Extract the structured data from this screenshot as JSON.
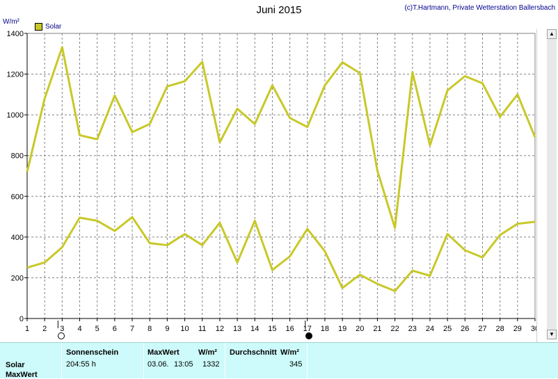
{
  "header": {
    "title": "Juni 2015",
    "copyright": "(c)T.Hartmann, Private Wetterstation Ballersbach",
    "unit": "W/m²",
    "legend_label": "Solar"
  },
  "colors": {
    "series": "#c8c828",
    "grid": "#808080",
    "background": "#ffffff",
    "stats_background": "#cdfafa"
  },
  "chart_data": {
    "type": "line",
    "title": "Juni 2015",
    "ylabel": "W/m²",
    "xlabel": "",
    "ylim": [
      0,
      1400
    ],
    "xlim": [
      1,
      30
    ],
    "yticks": [
      0,
      200,
      400,
      600,
      800,
      1000,
      1200,
      1400
    ],
    "x": [
      1,
      2,
      3,
      4,
      5,
      6,
      7,
      8,
      9,
      10,
      11,
      12,
      13,
      14,
      15,
      16,
      17,
      18,
      19,
      20,
      21,
      22,
      23,
      24,
      25,
      26,
      27,
      28,
      29,
      30
    ],
    "grid": true,
    "legend_position": "top-left",
    "series": [
      {
        "name": "Solar",
        "role": "max",
        "values": [
          720,
          1080,
          1332,
          900,
          880,
          1095,
          915,
          955,
          1140,
          1165,
          1260,
          865,
          1030,
          955,
          1145,
          985,
          940,
          1145,
          1258,
          1205,
          725,
          445,
          1210,
          850,
          1120,
          1190,
          1155,
          990,
          1100,
          890
        ]
      },
      {
        "name": "Solar",
        "role": "mean",
        "values": [
          250,
          275,
          350,
          495,
          480,
          430,
          498,
          370,
          360,
          415,
          360,
          470,
          275,
          480,
          238,
          305,
          440,
          330,
          150,
          215,
          170,
          135,
          235,
          210,
          415,
          335,
          300,
          410,
          465,
          475
        ]
      }
    ]
  },
  "markers": {
    "new_moon_day": 3,
    "full_moon_day": 17
  },
  "stats_panel": {
    "row_labels": [
      "Solar",
      "MaxWert"
    ],
    "sunshine_header": "Sonnenschein",
    "sunshine_value": "204:55 h",
    "max_header": "MaxWert",
    "max_unit": "W/m²",
    "max_date": "03.06.",
    "max_time": "13:05",
    "max_value": "1332",
    "avg_header": "Durchschnitt",
    "avg_unit": "W/m²",
    "avg_value": "345"
  },
  "scrollbar": {
    "up_arrow": "▲",
    "down_arrow": "▼"
  }
}
